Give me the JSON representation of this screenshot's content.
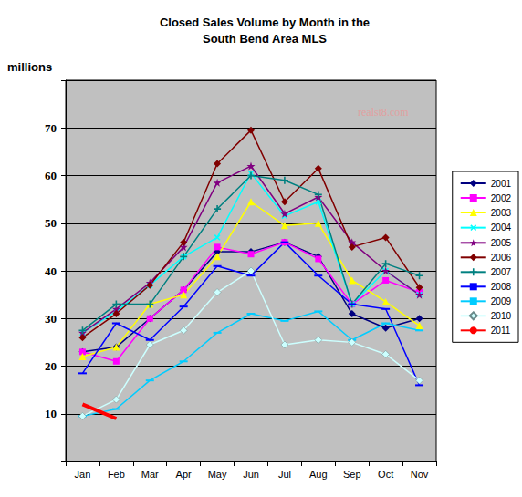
{
  "chart_data": {
    "type": "line",
    "title": "Closed Sales Volume by Month in the\nSouth Bend Area MLS",
    "y_label": "millions",
    "annotations": [
      "realst8.com"
    ],
    "categories": [
      "Jan",
      "Feb",
      "Mar",
      "Apr",
      "May",
      "Jun",
      "Jul",
      "Aug",
      "Sep",
      "Oct",
      "Nov"
    ],
    "ylim": [
      0,
      80
    ],
    "yticks": [
      10,
      20,
      30,
      40,
      50,
      60,
      70
    ],
    "grid": true,
    "legend": "right",
    "series": [
      {
        "name": "2001",
        "color": "#000080",
        "marker": "diamond",
        "values": [
          23,
          24,
          30,
          36,
          44,
          44,
          46,
          43,
          31,
          28,
          30
        ]
      },
      {
        "name": "2002",
        "color": "#ff00ff",
        "marker": "square",
        "values": [
          23,
          21,
          30,
          36,
          45,
          43.5,
          46,
          42.5,
          33,
          38,
          35.5
        ]
      },
      {
        "name": "2003",
        "color": "#ffff00",
        "marker": "triangle",
        "values": [
          22,
          24,
          33,
          35,
          43,
          54.5,
          49.5,
          50,
          38,
          33.5,
          28.5
        ]
      },
      {
        "name": "2004",
        "color": "#00ffff",
        "marker": "x",
        "values": [
          27,
          31.5,
          37,
          43,
          47,
          60.5,
          51.5,
          54.5,
          33,
          40,
          35
        ]
      },
      {
        "name": "2005",
        "color": "#800080",
        "marker": "star",
        "values": [
          27,
          32,
          37.5,
          45,
          58.5,
          62,
          52,
          55.5,
          46,
          40,
          35
        ]
      },
      {
        "name": "2006",
        "color": "#800000",
        "marker": "diamond",
        "values": [
          26,
          31,
          37,
          46,
          62.5,
          69.5,
          54.5,
          61.5,
          45,
          47,
          36.5
        ]
      },
      {
        "name": "2007",
        "color": "#008080",
        "marker": "plus",
        "values": [
          27.5,
          33,
          33,
          43,
          53,
          60,
          59,
          56,
          33,
          41.5,
          39
        ]
      },
      {
        "name": "2008",
        "color": "#0000ff",
        "marker": "dash",
        "values": [
          18.5,
          29,
          25.5,
          32.5,
          41,
          39,
          46,
          39,
          33,
          32,
          16
        ]
      },
      {
        "name": "2009",
        "color": "#00ccff",
        "marker": "dash",
        "values": [
          9.5,
          11,
          17,
          21,
          27,
          31,
          29.5,
          31.5,
          25.5,
          29,
          27.5
        ]
      },
      {
        "name": "2010",
        "color": "#ccffff",
        "marker": "diamond",
        "values": [
          9.5,
          13,
          24.5,
          27.5,
          35.5,
          40,
          24.5,
          25.5,
          25,
          22.5,
          17
        ]
      },
      {
        "name": "2011",
        "color": "#ff0000",
        "marker": "none",
        "line_style": "thick",
        "values": [
          12,
          9,
          null,
          null,
          null,
          null,
          null,
          null,
          null,
          null,
          null
        ]
      }
    ]
  }
}
